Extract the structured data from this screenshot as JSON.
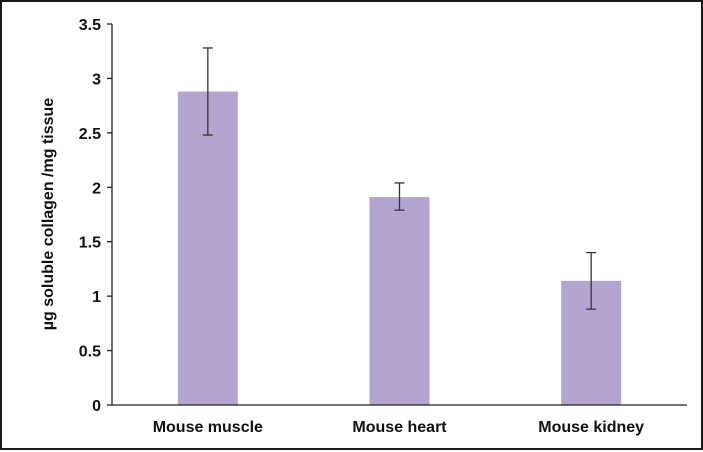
{
  "chart_data": {
    "type": "bar",
    "title": "",
    "xlabel": "",
    "ylabel": "µg soluble collagen /mg tissue",
    "categories": [
      "Mouse muscle",
      "Mouse heart",
      "Mouse kidney"
    ],
    "values": [
      2.88,
      1.91,
      1.14
    ],
    "error_low": [
      2.48,
      1.79,
      0.88
    ],
    "error_high": [
      3.28,
      2.04,
      1.4
    ],
    "ylim": [
      0,
      3.5
    ],
    "yticks": [
      0,
      0.5,
      1,
      1.5,
      2,
      2.5,
      3,
      3.5
    ],
    "ytick_labels": [
      "0",
      "0.5",
      "1",
      "1.5",
      "2",
      "2.5",
      "3",
      "3.5"
    ],
    "grid": false,
    "legend": "none",
    "bar_color": "#b3a5cf",
    "error_color": "#333333",
    "axis_color": "#222222"
  }
}
